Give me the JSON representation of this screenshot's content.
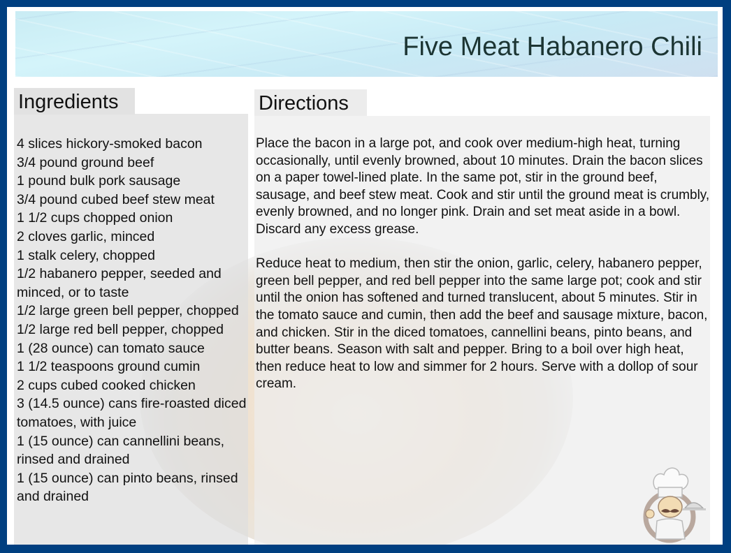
{
  "title": "Five Meat Habanero Chili",
  "ingredients": {
    "heading": "Ingredients",
    "items": [
      "4 slices hickory-smoked bacon",
      "3/4 pound ground beef",
      "1 pound bulk pork sausage",
      "3/4 pound cubed beef stew meat",
      "1 1/2 cups chopped onion",
      "2 cloves garlic, minced",
      "1 stalk celery, chopped",
      "1/2 habanero pepper, seeded and minced, or to taste",
      "1/2 large green bell pepper, chopped",
      "1/2 large red bell pepper, chopped",
      "1 (28 ounce) can tomato sauce",
      "1 1/2 teaspoons ground cumin",
      "2 cups cubed cooked chicken",
      "3 (14.5 ounce) cans fire-roasted diced tomatoes, with juice",
      "1 (15 ounce) can cannellini beans, rinsed and drained",
      "1 (15 ounce) can pinto beans, rinsed and drained"
    ]
  },
  "directions": {
    "heading": "Directions",
    "steps": [
      "Place the bacon in a large pot, and cook over medium-high heat, turning occasionally, until evenly browned, about 10 minutes. Drain the bacon slices on a paper towel-lined plate. In the same pot, stir in the ground beef, sausage, and beef stew meat. Cook and stir until the ground meat is crumbly, evenly browned, and no longer pink. Drain and set meat aside in a bowl. Discard any excess grease.",
      "Reduce heat to medium, then stir the onion, garlic, celery, habanero pepper, green bell pepper, and red bell pepper into the same large pot; cook and stir until the onion has softened and turned translucent, about 5 minutes. Stir in the tomato sauce and cumin, then add the beef and sausage mixture, bacon, and chicken. Stir in the diced tomatoes, cannellini beans, pinto beans, and butter beans. Season with salt and pepper. Bring to a boil over high heat, then reduce heat to low and simmer for 2 hours. Serve with a dollop of sour cream."
    ]
  },
  "colors": {
    "frame": "#003f80",
    "title": "#1c3533"
  },
  "icons": {
    "logo": "chef-icon"
  }
}
